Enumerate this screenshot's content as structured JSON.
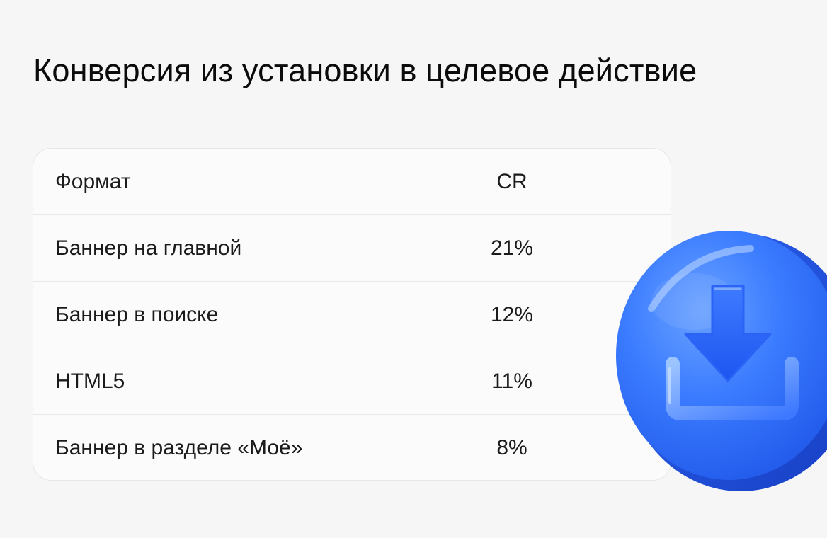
{
  "title": "Конверсия из установки в целевое действие",
  "table": {
    "headers": {
      "format": "Формат",
      "cr": "CR"
    },
    "rows": [
      {
        "format": "Баннер на главной",
        "cr": "21%"
      },
      {
        "format": "Баннер в поиске",
        "cr": "12%"
      },
      {
        "format": "HTML5",
        "cr": "11%"
      },
      {
        "format": "Баннер в разделе «Моё»",
        "cr": "8%"
      }
    ]
  },
  "decoration": {
    "icon": "download-coin-icon",
    "accent": "#2f6bff"
  },
  "chart_data": {
    "type": "table",
    "title": "Конверсия из установки в целевое действие",
    "columns": [
      "Формат",
      "CR"
    ],
    "categories": [
      "Баннер на главной",
      "Баннер в поиске",
      "HTML5",
      "Баннер в разделе «Моё»"
    ],
    "values": [
      21,
      12,
      11,
      8
    ],
    "unit": "%"
  }
}
